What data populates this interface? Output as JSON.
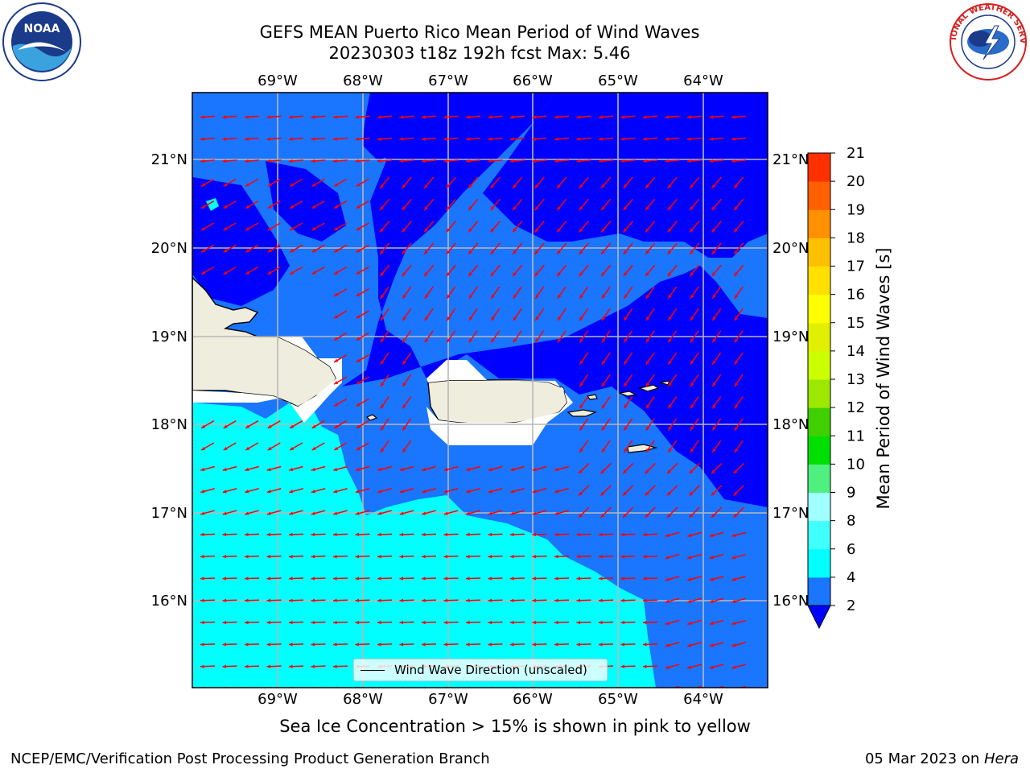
{
  "title": {
    "line1": "GEFS MEAN Puerto Rico Mean Period of Wind Waves",
    "line2": "20230303 t18z 192h fcst   Max: 5.46"
  },
  "map": {
    "lon_ticks": [
      "69°W",
      "68°W",
      "67°W",
      "66°W",
      "65°W",
      "64°W"
    ],
    "lat_ticks": [
      "21°N",
      "20°N",
      "19°N",
      "18°N",
      "17°N",
      "16°N"
    ],
    "gridlines": true,
    "colors": {
      "land": "#efedde",
      "range_2_4": "#1a75ff",
      "range_4_6": "#00ffff",
      "below_2": "#0000ff",
      "arrows": "#ff0000",
      "coastline": "#000000"
    },
    "wind_wave_direction": "westward, slightly south-west"
  },
  "legend": {
    "label": "Wind Wave Direction (unscaled)"
  },
  "colorbar": {
    "label": "Mean Period of Wind Waves [s]",
    "ticks": [
      "2",
      "4",
      "6",
      "8",
      "9",
      "10",
      "11",
      "12",
      "13",
      "14",
      "15",
      "16",
      "17",
      "18",
      "19",
      "20",
      "21"
    ],
    "levels": [
      2,
      4,
      6,
      8,
      9,
      10,
      11,
      12,
      13,
      14,
      15,
      16,
      17,
      18,
      19,
      20,
      21
    ],
    "colors": [
      "#1a75ff",
      "#00ffff",
      "#40ffff",
      "#a0ffff",
      "#50f080",
      "#00e000",
      "#40d000",
      "#9ce800",
      "#ccff00",
      "#e0f000",
      "#ffff00",
      "#ffe000",
      "#ffc000",
      "#ff9000",
      "#ff6000",
      "#ff3000",
      "#ff0000"
    ],
    "extend_color": "#0000ff"
  },
  "sea_ice_note": "Sea Ice Concentration > 15% is shown in pink to yellow",
  "footer": {
    "left": "NCEP/EMC/Verification Post Processing Product Generation Branch",
    "right_date": "05 Mar 2023 on ",
    "right_host": "Hera"
  },
  "logos": {
    "noaa": "NOAA",
    "nws": "NATIONAL WEATHER SERVICE"
  }
}
